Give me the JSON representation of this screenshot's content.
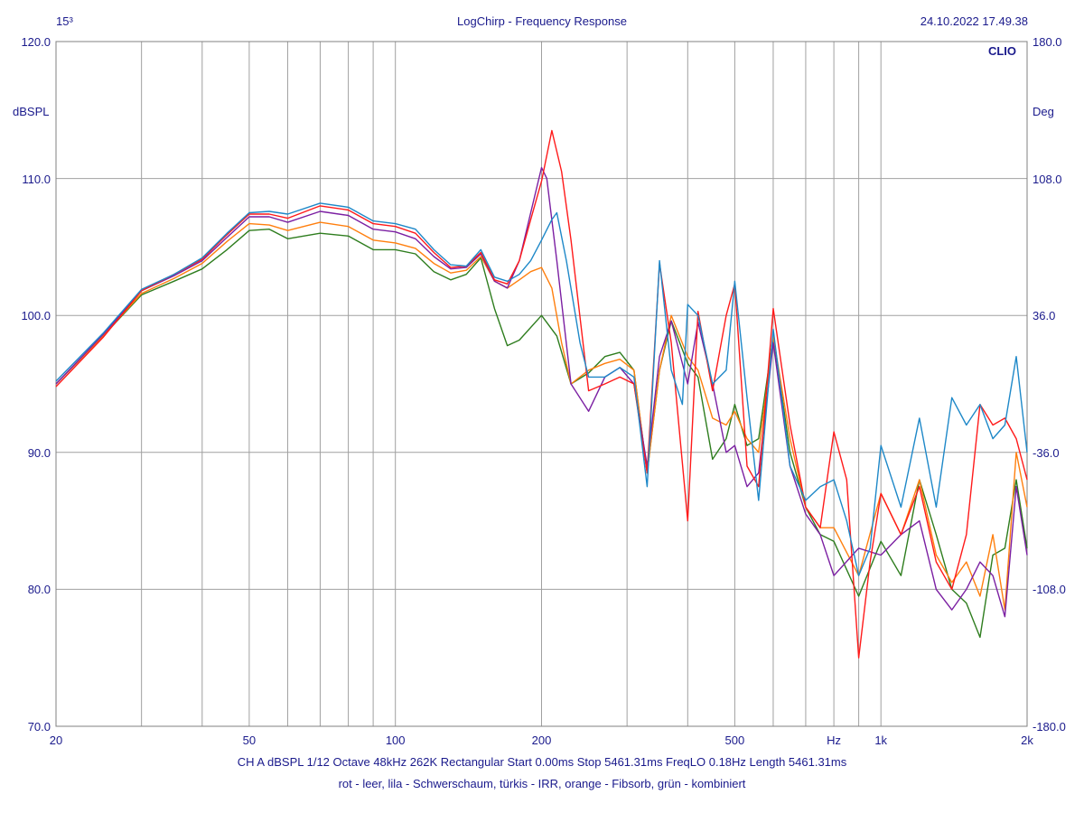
{
  "header": {
    "left": "15³",
    "title": "LogChirp - Frequency Response",
    "datetime": "24.10.2022 17.49.38",
    "brand": "CLIO"
  },
  "footer": {
    "settings": "CH A   dBSPL   1/12 Octave   48kHz   262K   Rectangular   Start 0.00ms   Stop 5461.31ms   FreqLO 0.18Hz   Length 5461.31ms",
    "legend_text": "rot - leer, lila - Schwerschaum, türkis - IRR, orange - Fibsorb, grün - kombiniert"
  },
  "chart_data": {
    "type": "line",
    "title": "LogChirp - Frequency Response",
    "xscale": "log",
    "xlim": [
      20,
      2000
    ],
    "ylim": [
      70,
      120
    ],
    "y2lim": [
      -180,
      180
    ],
    "ylabel": "dBSPL",
    "y2label": "Deg",
    "xunit": "Hz",
    "grid": true,
    "x_ticks": [
      {
        "value": 20,
        "label": "20"
      },
      {
        "value": 50,
        "label": "50"
      },
      {
        "value": 100,
        "label": "100"
      },
      {
        "value": 200,
        "label": "200"
      },
      {
        "value": 500,
        "label": "500"
      },
      {
        "value": 1000,
        "label": "1k"
      },
      {
        "value": 2000,
        "label": "2k"
      }
    ],
    "x_unit_label_at": 800,
    "x_grid": [
      30,
      40,
      50,
      60,
      70,
      80,
      90,
      100,
      200,
      300,
      400,
      500,
      600,
      700,
      800,
      900,
      1000
    ],
    "y_ticks": [
      {
        "value": 70,
        "label": "70.0"
      },
      {
        "value": 80,
        "label": "80.0"
      },
      {
        "value": 90,
        "label": "90.0"
      },
      {
        "value": 100,
        "label": "100.0"
      },
      {
        "value": 110,
        "label": "110.0"
      },
      {
        "value": 120,
        "label": "120.0"
      }
    ],
    "y2_ticks": [
      {
        "value": -180,
        "label": "-180.0"
      },
      {
        "value": -108,
        "label": "-108.0"
      },
      {
        "value": -36,
        "label": "-36.0"
      },
      {
        "value": 36,
        "label": "36.0"
      },
      {
        "value": 108,
        "label": "108.0"
      },
      {
        "value": 180,
        "label": "180.0"
      }
    ],
    "series": [
      {
        "color": "#2e7d1e",
        "x": [
          20,
          25,
          30,
          35,
          40,
          45,
          50,
          55,
          60,
          70,
          80,
          90,
          100,
          110,
          120,
          130,
          140,
          150,
          160,
          170,
          180,
          200,
          215,
          230,
          250,
          270,
          290,
          310,
          330,
          350,
          370,
          400,
          420,
          450,
          480,
          500,
          530,
          560,
          600,
          650,
          700,
          750,
          800,
          900,
          1000,
          1100,
          1200,
          1300,
          1400,
          1500,
          1600,
          1700,
          1800,
          1900,
          2000
        ],
        "values": [
          95.0,
          98.5,
          101.5,
          102.5,
          103.4,
          104.8,
          106.2,
          106.3,
          105.6,
          106.0,
          105.8,
          104.8,
          104.8,
          104.5,
          103.2,
          102.6,
          103.0,
          104.2,
          100.5,
          97.8,
          98.2,
          100.0,
          98.5,
          95.0,
          95.8,
          97.0,
          97.3,
          96.0,
          88.5,
          96.0,
          99.6,
          96.5,
          95.5,
          89.5,
          91.0,
          93.5,
          90.5,
          91.0,
          98.5,
          90.0,
          86.0,
          84.0,
          83.5,
          79.5,
          83.5,
          81.0,
          88.0,
          84.0,
          80.0,
          79.0,
          76.5,
          82.5,
          83.0,
          88.0,
          83.0
        ]
      },
      {
        "color": "#ff7f0e",
        "x": [
          20,
          25,
          30,
          35,
          40,
          45,
          50,
          55,
          60,
          70,
          80,
          90,
          100,
          110,
          120,
          130,
          140,
          150,
          160,
          170,
          180,
          190,
          200,
          210,
          220,
          230,
          250,
          270,
          290,
          310,
          330,
          350,
          370,
          400,
          420,
          450,
          480,
          500,
          530,
          560,
          600,
          650,
          700,
          750,
          800,
          900,
          1000,
          1100,
          1200,
          1300,
          1400,
          1500,
          1600,
          1700,
          1800,
          1900,
          2000
        ],
        "values": [
          95.0,
          98.5,
          101.6,
          102.7,
          103.8,
          105.4,
          106.7,
          106.6,
          106.2,
          106.8,
          106.5,
          105.5,
          105.3,
          104.9,
          103.8,
          103.1,
          103.3,
          104.3,
          102.5,
          102.0,
          102.6,
          103.2,
          103.5,
          102.0,
          98.0,
          95.0,
          96.0,
          96.5,
          96.8,
          96.0,
          88.5,
          96.0,
          100.0,
          97.0,
          96.0,
          92.5,
          92.0,
          93.0,
          91.0,
          90.0,
          98.5,
          91.0,
          86.0,
          84.5,
          84.5,
          81.0,
          87.0,
          84.0,
          88.0,
          82.5,
          80.5,
          82.0,
          79.5,
          84.0,
          78.5,
          90.0,
          86.0
        ]
      },
      {
        "color": "#7b1fa2",
        "x": [
          20,
          25,
          30,
          35,
          40,
          45,
          50,
          55,
          60,
          70,
          80,
          90,
          100,
          110,
          120,
          130,
          140,
          150,
          160,
          170,
          180,
          190,
          200,
          205,
          215,
          230,
          250,
          270,
          290,
          310,
          330,
          350,
          370,
          400,
          420,
          450,
          480,
          500,
          530,
          560,
          600,
          650,
          700,
          750,
          800,
          900,
          1000,
          1100,
          1200,
          1300,
          1400,
          1500,
          1600,
          1700,
          1800,
          1900,
          2000
        ],
        "values": [
          95.0,
          98.6,
          101.8,
          102.9,
          104.0,
          105.7,
          107.2,
          107.2,
          106.8,
          107.6,
          107.3,
          106.3,
          106.1,
          105.6,
          104.3,
          103.4,
          103.5,
          104.5,
          102.5,
          102.0,
          104.0,
          107.5,
          110.8,
          110.0,
          104.0,
          95.0,
          93.0,
          95.5,
          96.2,
          95.0,
          89.0,
          97.0,
          99.6,
          95.0,
          99.5,
          95.0,
          90.0,
          90.5,
          87.5,
          88.5,
          98.0,
          89.0,
          85.5,
          84.0,
          81.0,
          83.0,
          82.5,
          84.0,
          85.0,
          80.0,
          78.5,
          80.0,
          82.0,
          81.0,
          78.0,
          87.5,
          82.5
        ]
      },
      {
        "color": "#ff1a1a",
        "x": [
          20,
          25,
          30,
          35,
          40,
          45,
          50,
          55,
          60,
          70,
          80,
          90,
          100,
          110,
          120,
          130,
          140,
          150,
          160,
          170,
          180,
          190,
          200,
          210,
          220,
          230,
          250,
          270,
          290,
          310,
          330,
          350,
          370,
          400,
          420,
          450,
          480,
          500,
          530,
          560,
          600,
          650,
          700,
          750,
          800,
          850,
          900,
          950,
          1000,
          1100,
          1200,
          1300,
          1400,
          1500,
          1600,
          1700,
          1800,
          1900,
          2000
        ],
        "values": [
          94.8,
          98.4,
          101.8,
          103.0,
          104.1,
          105.9,
          107.4,
          107.4,
          107.1,
          108.0,
          107.7,
          106.7,
          106.5,
          106.0,
          104.6,
          103.5,
          103.6,
          104.6,
          102.6,
          102.3,
          104.0,
          107.0,
          109.8,
          113.5,
          110.5,
          105.5,
          94.5,
          95.0,
          95.5,
          95.0,
          88.5,
          103.8,
          98.0,
          85.0,
          100.3,
          94.5,
          100.0,
          102.3,
          89.0,
          87.5,
          100.5,
          92.0,
          86.0,
          84.5,
          91.5,
          88.0,
          75.0,
          82.0,
          87.0,
          84.0,
          87.5,
          82.0,
          80.0,
          84.0,
          93.5,
          92.0,
          92.5,
          91.0,
          88.0
        ]
      },
      {
        "color": "#1e88c8",
        "x": [
          20,
          25,
          30,
          35,
          40,
          45,
          50,
          55,
          60,
          70,
          80,
          90,
          100,
          110,
          120,
          130,
          140,
          150,
          160,
          170,
          180,
          190,
          200,
          210,
          215,
          225,
          240,
          250,
          270,
          290,
          310,
          330,
          350,
          370,
          390,
          400,
          420,
          450,
          480,
          500,
          530,
          560,
          600,
          650,
          700,
          750,
          800,
          850,
          900,
          950,
          1000,
          1100,
          1200,
          1300,
          1400,
          1500,
          1600,
          1700,
          1800,
          1900,
          2000
        ],
        "values": [
          95.2,
          98.7,
          101.9,
          103.0,
          104.2,
          106.0,
          107.5,
          107.6,
          107.4,
          108.2,
          107.9,
          106.9,
          106.7,
          106.3,
          104.8,
          103.7,
          103.6,
          104.8,
          102.8,
          102.5,
          103.0,
          104.0,
          105.5,
          107.0,
          107.5,
          104.0,
          98.0,
          95.5,
          95.5,
          96.2,
          95.5,
          87.5,
          104.0,
          96.0,
          93.5,
          100.8,
          100.0,
          95.0,
          96.0,
          102.5,
          94.0,
          86.5,
          99.0,
          89.0,
          86.5,
          87.5,
          88.0,
          85.0,
          81.0,
          83.0,
          90.5,
          86.0,
          92.5,
          86.0,
          94.0,
          92.0,
          93.5,
          91.0,
          92.0,
          97.0,
          90.0
        ]
      }
    ]
  }
}
